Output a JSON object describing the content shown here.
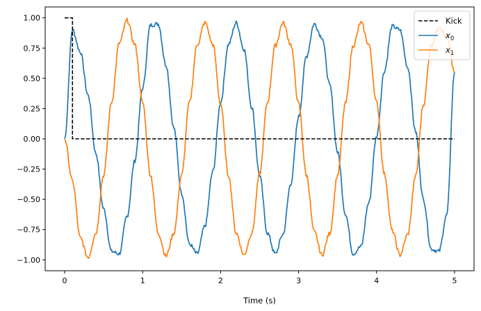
{
  "chart_data": {
    "type": "line",
    "xlabel": "Time (s)",
    "ylabel": "",
    "title": "",
    "xlim": [
      -0.25,
      5.25
    ],
    "ylim": [
      -1.09,
      1.09
    ],
    "xticks": [
      0,
      1,
      2,
      3,
      4,
      5
    ],
    "yticks": [
      1.0,
      0.75,
      0.5,
      0.25,
      0.0,
      -0.25,
      -0.5,
      -0.75,
      -1.0
    ],
    "xtick_labels": [
      "0",
      "1",
      "2",
      "3",
      "4",
      "5"
    ],
    "ytick_labels": [
      "1.00",
      "0.75",
      "0.50",
      "0.25",
      "0.00",
      "−0.25",
      "−0.50",
      "−0.75",
      "−1.00"
    ],
    "grid": false,
    "legend_position": "top-right",
    "series": [
      {
        "name": "Kick",
        "legend_main": "Kick",
        "legend_sub": "",
        "color": "#000000",
        "style": "dashed",
        "x": [
          0.0,
          0.1,
          0.1,
          5.0
        ],
        "y": [
          1.0,
          1.0,
          0.0,
          0.0
        ]
      },
      {
        "name": "x0",
        "legend_main": "x",
        "legend_sub": "0",
        "color": "#1f77b4",
        "style": "solid",
        "noisy": true,
        "x": [
          0.0,
          0.1,
          0.2,
          0.3,
          0.4,
          0.5,
          0.6,
          0.7,
          0.8,
          0.9,
          1.0,
          1.1,
          1.2,
          1.3,
          1.4,
          1.5,
          1.6,
          1.7,
          1.8,
          1.9,
          2.0,
          2.1,
          2.2,
          2.3,
          2.4,
          2.5,
          2.6,
          2.7,
          2.8,
          2.9,
          3.0,
          3.1,
          3.2,
          3.3,
          3.4,
          3.5,
          3.6,
          3.7,
          3.8,
          3.9,
          4.0,
          4.1,
          4.2,
          4.3,
          4.4,
          4.5,
          4.6,
          4.7,
          4.8,
          4.9,
          5.0
        ],
        "y": [
          0.0,
          0.9,
          0.72,
          0.36,
          -0.12,
          -0.58,
          -0.93,
          -0.95,
          -0.64,
          -0.18,
          0.42,
          0.94,
          0.95,
          0.61,
          0.09,
          -0.45,
          -0.87,
          -0.95,
          -0.72,
          -0.27,
          0.3,
          0.78,
          0.96,
          0.74,
          0.26,
          -0.3,
          -0.78,
          -0.95,
          -0.79,
          -0.37,
          0.18,
          0.68,
          0.95,
          0.84,
          0.44,
          -0.11,
          -0.62,
          -0.95,
          -0.89,
          -0.53,
          0.02,
          0.56,
          0.93,
          0.9,
          0.59,
          0.06,
          -0.5,
          -0.91,
          -0.93,
          -0.63,
          0.55
        ]
      },
      {
        "name": "x1",
        "legend_main": "x",
        "legend_sub": "1",
        "color": "#ff7f0e",
        "style": "solid",
        "noisy": true,
        "x": [
          0.0,
          0.1,
          0.2,
          0.3,
          0.4,
          0.5,
          0.6,
          0.7,
          0.8,
          0.9,
          1.0,
          1.1,
          1.2,
          1.3,
          1.4,
          1.5,
          1.6,
          1.7,
          1.8,
          1.9,
          2.0,
          2.1,
          2.2,
          2.3,
          2.4,
          2.5,
          2.6,
          2.7,
          2.8,
          2.9,
          3.0,
          3.1,
          3.2,
          3.3,
          3.4,
          3.5,
          3.6,
          3.7,
          3.8,
          3.9,
          4.0,
          4.1,
          4.2,
          4.3,
          4.4,
          4.5,
          4.6,
          4.7,
          4.8,
          4.9,
          5.0
        ],
        "y": [
          0.0,
          -0.35,
          -0.82,
          -0.98,
          -0.78,
          -0.3,
          0.3,
          0.79,
          0.98,
          0.78,
          0.3,
          -0.3,
          -0.78,
          -0.97,
          -0.78,
          -0.3,
          0.3,
          0.78,
          0.96,
          0.78,
          0.29,
          -0.3,
          -0.78,
          -0.96,
          -0.78,
          -0.29,
          0.3,
          0.77,
          0.96,
          0.78,
          0.29,
          -0.3,
          -0.77,
          -0.96,
          -0.78,
          -0.3,
          0.29,
          0.77,
          0.96,
          0.78,
          0.3,
          -0.29,
          -0.76,
          -0.96,
          -0.79,
          -0.31,
          0.28,
          0.77,
          0.93,
          0.84,
          0.55
        ]
      }
    ]
  }
}
